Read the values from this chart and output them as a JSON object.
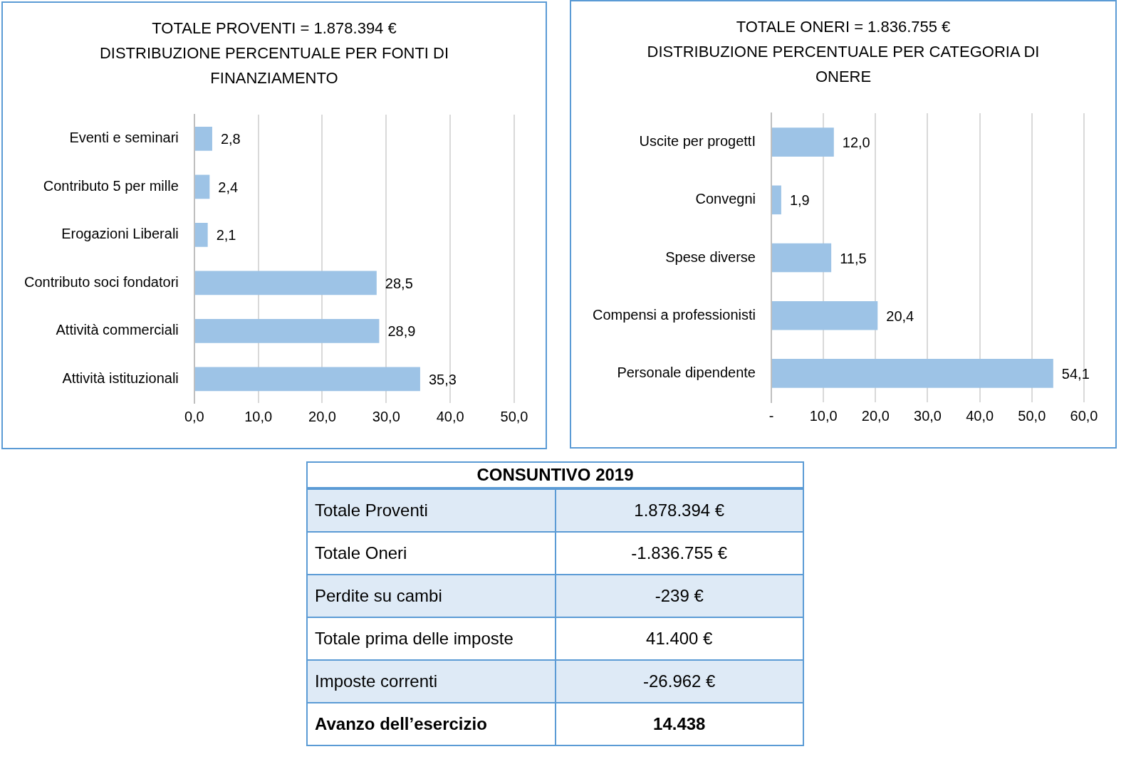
{
  "chart_data": [
    {
      "type": "bar",
      "orientation": "horizontal",
      "title": "TOTALE PROVENTI = 1.878.394 €",
      "subtitle": "DISTRIBUZIONE PERCENTUALE PER FONTI DI FINANZIAMENTO",
      "categories": [
        "Eventi e seminari",
        "Contributo 5 per mille",
        "Erogazioni Liberali",
        "Contributo soci fondatori",
        "Attività commerciali",
        "Attività istituzionali"
      ],
      "values": [
        2.8,
        2.4,
        2.1,
        28.5,
        28.9,
        35.3
      ],
      "value_labels": [
        "2,8",
        "2,4",
        "2,1",
        "28,5",
        "28,9",
        "35,3"
      ],
      "color": "#9dc3e6",
      "xlim": [
        0,
        50
      ],
      "xticks": [
        {
          "value": 0,
          "label": "0,0"
        },
        {
          "value": 10,
          "label": "10,0"
        },
        {
          "value": 20,
          "label": "20,0"
        },
        {
          "value": 30,
          "label": "30,0"
        },
        {
          "value": 40,
          "label": "40,0"
        },
        {
          "value": 50,
          "label": "50,0"
        }
      ],
      "grid": "x"
    },
    {
      "type": "bar",
      "orientation": "horizontal",
      "title": "TOTALE ONERI = 1.836.755 €",
      "subtitle": "DISTRIBUZIONE PERCENTUALE PER CATEGORIA DI ONERE",
      "categories": [
        "Uscite per progettI",
        "Convegni",
        "Spese diverse",
        "Compensi a professionisti",
        "Personale dipendente"
      ],
      "values": [
        12.0,
        1.9,
        11.5,
        20.4,
        54.1
      ],
      "value_labels": [
        "12,0",
        "1,9",
        "11,5",
        "20,4",
        "54,1"
      ],
      "color": "#9dc3e6",
      "xlim": [
        0,
        60
      ],
      "xticks": [
        {
          "value": 0,
          "label": "-"
        },
        {
          "value": 10,
          "label": "10,0"
        },
        {
          "value": 20,
          "label": "20,0"
        },
        {
          "value": 30,
          "label": "30,0"
        },
        {
          "value": 40,
          "label": "40,0"
        },
        {
          "value": 50,
          "label": "50,0"
        },
        {
          "value": 60,
          "label": "60,0"
        }
      ],
      "grid": "x"
    },
    {
      "type": "other",
      "title": "CONSUNTIVO 2019",
      "annotations": [
        "Totale Proventi",
        "1.878.394 €",
        "Totale Oneri",
        "-1.836.755 €",
        "Perdite su cambi",
        "-239 €",
        "Totale prima delle imposte",
        "41.400 €",
        "Imposte correnti",
        "-26.962 €",
        "Avanzo dell’esercizio",
        "14.438"
      ]
    }
  ]
}
